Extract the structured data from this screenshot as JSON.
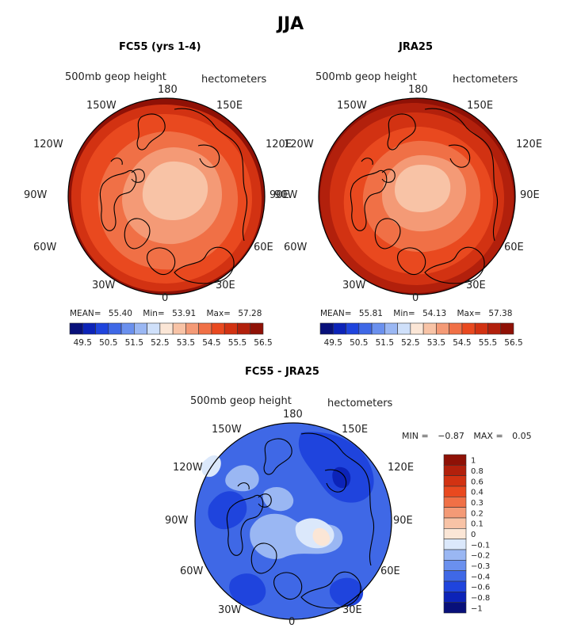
{
  "figure_title": "JJA",
  "panels": [
    {
      "title": "FC55 (yrs 1-4)",
      "variable": "500mb geop height",
      "units": "hectometers",
      "stats": {
        "mean_label": "MEAN=",
        "mean": "55.40",
        "min_label": "Min=",
        "min": "53.91",
        "max_label": "Max=",
        "max": "57.28"
      }
    },
    {
      "title": "JRA25",
      "variable": "500mb geop height",
      "units": "hectometers",
      "stats": {
        "mean_label": "MEAN=",
        "mean": "55.81",
        "min_label": "Min=",
        "min": "54.13",
        "max_label": "Max=",
        "max": "57.38"
      }
    },
    {
      "title": "FC55 - JRA25",
      "variable": "500mb geop height",
      "units": "hectometers",
      "stats": {
        "min_label": "MIN =",
        "min": "−0.87",
        "max_label": "MAX =",
        "max": "0.05"
      }
    }
  ],
  "longitude_labels": {
    "top": "180",
    "bottom": "0",
    "left_upper": "150W",
    "right_upper": "150E",
    "left_mid_upper": "120W",
    "right_mid_upper": "120E",
    "left": "90W",
    "right": "90E",
    "left_mid_lower": "60W",
    "right_mid_lower": "60E",
    "left_lower": "30W",
    "right_lower": "30E"
  },
  "colorbar_height": {
    "ticks": [
      "49.5",
      "50.5",
      "51.5",
      "52.5",
      "53.5",
      "54.5",
      "55.5",
      "56.5"
    ],
    "colors": [
      "#08107a",
      "#0c23b8",
      "#1f44dd",
      "#3f68e6",
      "#6a90ee",
      "#9ab7f3",
      "#cfe0fa",
      "#fbe6d6",
      "#f8c3a6",
      "#f49a76",
      "#f07046",
      "#e9491f",
      "#d23212",
      "#b2200c",
      "#8f1106"
    ]
  },
  "colorbar_diff": {
    "labels": [
      "1",
      "0.8",
      "0.6",
      "0.4",
      "0.3",
      "0.2",
      "0.1",
      "0",
      "−0.1",
      "−0.2",
      "−0.3",
      "−0.4",
      "−0.6",
      "−0.8",
      "−1"
    ],
    "colors": [
      "#8f1106",
      "#b2200c",
      "#d23212",
      "#e9491f",
      "#f07046",
      "#f49a76",
      "#f8c3a6",
      "#fbe6d6",
      "#dbe8fb",
      "#9ab7f3",
      "#6a90ee",
      "#3f68e6",
      "#1f44dd",
      "#0c23b8",
      "#08107a"
    ]
  },
  "colors": {
    "height_outer": "#8f1106",
    "height_ring2": "#d23212",
    "height_ring3": "#e9491f",
    "height_ring4": "#f07046",
    "height_ring5": "#f49a76",
    "height_inner": "#f8c3a6",
    "diff_base": "#3f68e6",
    "diff_dark": "#1f44dd",
    "diff_light": "#9ab7f3",
    "diff_pale": "#dbe8fb",
    "diff_pos": "#fbe6d6"
  }
}
